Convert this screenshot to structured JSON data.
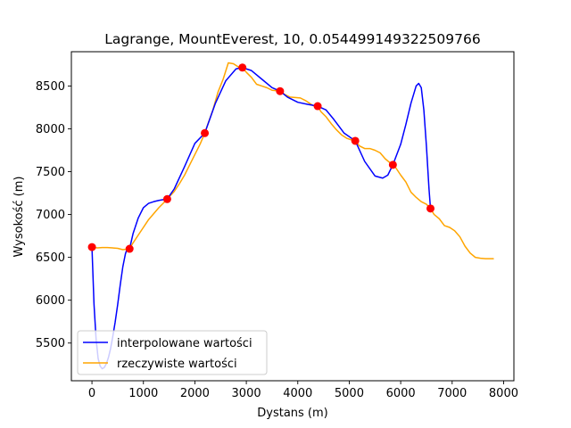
{
  "chart_data": {
    "type": "line",
    "title": "Lagrange, MountEverest, 10, 0.054499149322509766",
    "xlabel": "Dystans (m)",
    "ylabel": "Wysokość (m)",
    "xlim": [
      -400,
      8200
    ],
    "ylim": [
      5060,
      8900
    ],
    "xticks": [
      0,
      1000,
      2000,
      3000,
      4000,
      5000,
      6000,
      7000,
      8000
    ],
    "yticks": [
      5500,
      6000,
      6500,
      7000,
      7500,
      8000,
      8500
    ],
    "grid": false,
    "legend_position": "lower-left",
    "colors": {
      "interpolated": "#0000ff",
      "actual": "#ffa500",
      "nodes": "#ff0000"
    },
    "series": [
      {
        "name": "interpolowane wartości",
        "color": "#0000ff",
        "x": [
          0,
          40,
          80,
          120,
          160,
          200,
          240,
          280,
          320,
          360,
          400,
          450,
          500,
          550,
          600,
          650,
          700,
          731,
          800,
          900,
          1000,
          1100,
          1200,
          1300,
          1400,
          1462,
          1600,
          1800,
          2000,
          2193,
          2400,
          2600,
          2800,
          2924,
          3100,
          3300,
          3500,
          3655,
          3800,
          4000,
          4200,
          4386,
          4550,
          4700,
          4900,
          5117,
          5300,
          5500,
          5650,
          5750,
          5848,
          6000,
          6100,
          6200,
          6300,
          6350,
          6400,
          6450,
          6500,
          6550,
          6579
        ],
        "values": [
          6620,
          5950,
          5550,
          5320,
          5230,
          5200,
          5215,
          5260,
          5330,
          5430,
          5560,
          5740,
          5950,
          6180,
          6390,
          6540,
          6630,
          6600,
          6780,
          6960,
          7080,
          7130,
          7150,
          7165,
          7175,
          7180,
          7300,
          7560,
          7830,
          7950,
          8300,
          8560,
          8700,
          8715,
          8680,
          8580,
          8480,
          8440,
          8370,
          8310,
          8285,
          8265,
          8220,
          8110,
          7950,
          7860,
          7620,
          7450,
          7425,
          7460,
          7580,
          7820,
          8050,
          8300,
          8500,
          8530,
          8480,
          8220,
          7800,
          7300,
          7070
        ]
      },
      {
        "name": "rzeczywiste wartości",
        "color": "#ffa500",
        "x": [
          0,
          100,
          200,
          300,
          400,
          500,
          600,
          731,
          800,
          900,
          1000,
          1100,
          1200,
          1300,
          1400,
          1462,
          1600,
          1700,
          1800,
          1900,
          2000,
          2100,
          2193,
          2250,
          2350,
          2450,
          2550,
          2650,
          2750,
          2850,
          2924,
          3000,
          3100,
          3200,
          3300,
          3400,
          3500,
          3600,
          3655,
          3750,
          3850,
          3950,
          4050,
          4150,
          4250,
          4300,
          4386,
          4450,
          4550,
          4650,
          4750,
          4850,
          4950,
          5050,
          5117,
          5200,
          5300,
          5400,
          5500,
          5600,
          5700,
          5800,
          5848,
          5900,
          6000,
          6100,
          6200,
          6300,
          6400,
          6500,
          6579,
          6650,
          6750,
          6850,
          6950,
          7050,
          7150,
          7250,
          7350,
          7450,
          7550,
          7650,
          7750,
          7800
        ],
        "values": [
          6620,
          6610,
          6615,
          6615,
          6610,
          6605,
          6590,
          6600,
          6670,
          6760,
          6850,
          6940,
          7010,
          7080,
          7140,
          7180,
          7270,
          7360,
          7460,
          7580,
          7700,
          7820,
          7950,
          8050,
          8220,
          8430,
          8580,
          8770,
          8760,
          8720,
          8715,
          8660,
          8600,
          8520,
          8500,
          8480,
          8450,
          8445,
          8440,
          8400,
          8370,
          8365,
          8360,
          8330,
          8290,
          8270,
          8265,
          8200,
          8140,
          8060,
          7990,
          7930,
          7890,
          7870,
          7860,
          7800,
          7770,
          7770,
          7750,
          7720,
          7650,
          7600,
          7580,
          7550,
          7460,
          7380,
          7260,
          7200,
          7150,
          7120,
          7070,
          7000,
          6950,
          6870,
          6850,
          6810,
          6740,
          6630,
          6550,
          6500,
          6490,
          6485,
          6485,
          6485
        ]
      }
    ],
    "nodes": {
      "color": "#ff0000",
      "x": [
        0,
        731,
        1462,
        2193,
        2924,
        3655,
        4386,
        5117,
        5848,
        6579
      ],
      "values": [
        6620,
        6600,
        7180,
        7950,
        8715,
        8440,
        8265,
        7860,
        7580,
        7070
      ]
    }
  }
}
